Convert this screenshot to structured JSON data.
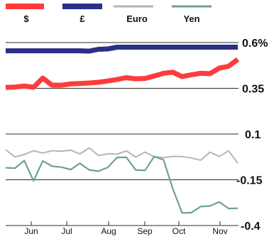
{
  "chart_data": {
    "type": "line",
    "title": "",
    "xlabel": "",
    "ylabel": "",
    "y_unit": "%",
    "ylim": [
      -0.4,
      0.6
    ],
    "yticks": [
      0.6,
      0.35,
      0.1,
      -0.15,
      -0.4
    ],
    "ytick_labels": [
      "0.6%",
      "0.35",
      "0.1",
      "-0.15",
      "-0.4"
    ],
    "grid": "horizontal",
    "legend_position": "top",
    "month_labels": [
      "Jun",
      "Jul",
      "Aug",
      "Sep",
      "Oct",
      "Nov"
    ],
    "x": [
      0,
      1,
      2,
      3,
      4,
      5,
      6,
      7,
      8,
      9,
      10,
      11,
      12,
      13,
      14,
      15,
      16,
      17,
      18,
      19,
      20,
      21,
      22,
      23,
      24,
      25
    ],
    "series": [
      {
        "name": "$",
        "color": "#ff3b3b",
        "values": [
          0.355,
          0.357,
          0.362,
          0.356,
          0.406,
          0.367,
          0.367,
          0.374,
          0.376,
          0.379,
          0.383,
          0.39,
          0.398,
          0.408,
          0.402,
          0.404,
          0.417,
          0.432,
          0.438,
          0.414,
          0.424,
          0.432,
          0.43,
          0.46,
          0.47,
          0.508
        ]
      },
      {
        "name": "£",
        "color": "#2b2f86",
        "values": [
          0.555,
          0.555,
          0.555,
          0.555,
          0.555,
          0.555,
          0.555,
          0.555,
          0.555,
          0.553,
          0.563,
          0.565,
          0.575,
          0.575,
          0.575,
          0.575,
          0.575,
          0.575,
          0.575,
          0.575,
          0.575,
          0.575,
          0.575,
          0.575,
          0.575,
          0.575
        ]
      },
      {
        "name": "Euro",
        "color": "#b8b6aa",
        "values": [
          0.014,
          -0.025,
          -0.012,
          0.009,
          -0.004,
          0.009,
          0.006,
          0.012,
          -0.009,
          0.024,
          -0.018,
          -0.008,
          -0.01,
          0.008,
          -0.026,
          0.001,
          -0.024,
          -0.029,
          -0.022,
          -0.023,
          -0.031,
          -0.043,
          0.001,
          -0.023,
          0.008,
          -0.059
        ]
      },
      {
        "name": "Yen",
        "color": "#6d9f9a",
        "values": [
          -0.084,
          -0.087,
          -0.045,
          -0.156,
          -0.047,
          -0.076,
          -0.081,
          -0.094,
          -0.06,
          -0.096,
          -0.103,
          -0.082,
          -0.028,
          -0.027,
          -0.096,
          -0.099,
          -0.023,
          -0.041,
          -0.199,
          -0.331,
          -0.33,
          -0.296,
          -0.293,
          -0.271,
          -0.307,
          -0.306
        ]
      }
    ]
  }
}
